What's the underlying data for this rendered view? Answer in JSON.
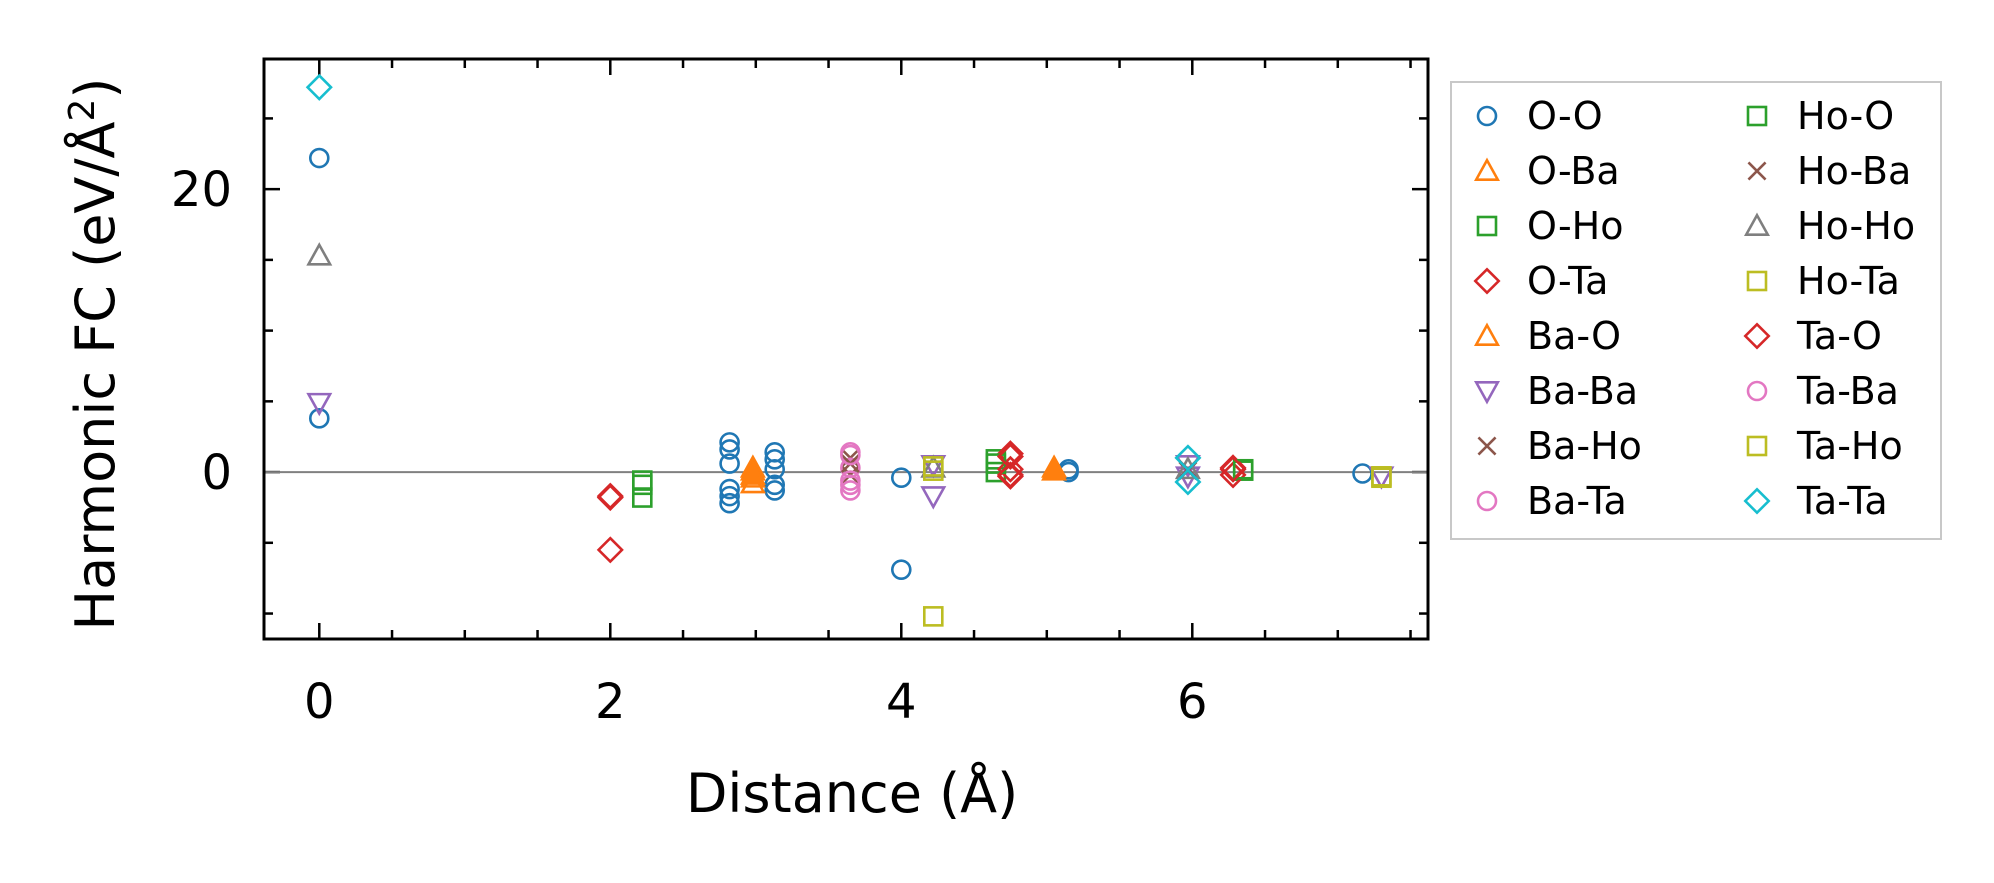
{
  "chart_data": {
    "type": "scatter",
    "title": "",
    "xlabel": "Distance (Å)",
    "ylabel_main": "Harmonic FC (eV/Å",
    "ylabel_sup": "2",
    "ylabel_close": ")",
    "xlim": [
      -0.38,
      7.62
    ],
    "ylim": [
      -11.8,
      29.2
    ],
    "xticks": [
      0,
      2,
      4,
      6
    ],
    "xtick_labels": [
      "0",
      "2",
      "4",
      "6"
    ],
    "yticks": [
      0,
      20
    ],
    "ytick_labels": [
      "0",
      "20"
    ],
    "x_minor_step": 0.5,
    "y_minor_step": 5,
    "zero_line": true,
    "grid": false,
    "legend_position": "outside-right",
    "series": [
      {
        "name": "O-O",
        "marker": "circle",
        "color": "#1f77b4",
        "filled": false,
        "points": [
          [
            0,
            22.2
          ],
          [
            0,
            3.8
          ],
          [
            2.82,
            2.1
          ],
          [
            2.82,
            1.6
          ],
          [
            2.82,
            0.6
          ],
          [
            2.82,
            -1.2
          ],
          [
            2.82,
            -1.7
          ],
          [
            2.82,
            -2.2
          ],
          [
            3.13,
            1.4
          ],
          [
            3.13,
            0.9
          ],
          [
            3.13,
            0.2
          ],
          [
            3.13,
            -0.9
          ],
          [
            3.13,
            -1.3
          ],
          [
            4.0,
            -0.4
          ],
          [
            4.0,
            -6.9
          ],
          [
            5.15,
            0.2
          ],
          [
            5.15,
            0
          ],
          [
            7.17,
            -0.1
          ]
        ]
      },
      {
        "name": "O-Ba",
        "marker": "triangle-up",
        "color": "#ff7f0e",
        "filled": false,
        "points": [
          [
            2.98,
            0.1
          ],
          [
            2.98,
            -0.4
          ],
          [
            2.98,
            -0.8
          ],
          [
            5.05,
            0.3
          ]
        ]
      },
      {
        "name": "O-Ho",
        "marker": "square",
        "color": "#2ca02c",
        "filled": false,
        "points": [
          [
            2.22,
            -0.9
          ],
          [
            2.22,
            -1.8
          ],
          [
            4.65,
            0.9
          ],
          [
            4.65,
            0
          ],
          [
            6.35,
            0.1
          ]
        ]
      },
      {
        "name": "O-Ta",
        "marker": "diamond",
        "color": "#d62728",
        "filled": false,
        "points": [
          [
            2.0,
            -1.8
          ],
          [
            2.0,
            -5.5
          ],
          [
            4.75,
            1.3
          ],
          [
            4.75,
            0.2
          ],
          [
            4.75,
            -0.3
          ],
          [
            6.28,
            0.3
          ],
          [
            6.28,
            -0.2
          ]
        ]
      },
      {
        "name": "Ba-O",
        "marker": "triangle-up",
        "color": "#ff7f0e",
        "filled": true,
        "points": [
          [
            2.98,
            0.3
          ],
          [
            2.98,
            -0.2
          ],
          [
            5.05,
            0.1
          ]
        ]
      },
      {
        "name": "Ba-Ba",
        "marker": "triangle-down",
        "color": "#9467bd",
        "filled": false,
        "points": [
          [
            0,
            4.9
          ],
          [
            4.22,
            0.5
          ],
          [
            4.22,
            -1.7
          ],
          [
            5.97,
            0.5
          ],
          [
            5.97,
            -0.3
          ],
          [
            7.3,
            -0.3
          ]
        ]
      },
      {
        "name": "Ba-Ho",
        "marker": "x",
        "color": "#8c564b",
        "filled": false,
        "points": [
          [
            3.65,
            1.0
          ],
          [
            3.65,
            -0.2
          ],
          [
            5.97,
            0.1
          ]
        ]
      },
      {
        "name": "Ba-Ta",
        "marker": "circle",
        "color": "#e377c2",
        "filled": false,
        "points": [
          [
            3.65,
            1.4
          ],
          [
            3.65,
            0.3
          ],
          [
            3.65,
            -0.6
          ],
          [
            3.65,
            -1.3
          ]
        ]
      },
      {
        "name": "Ho-O",
        "marker": "square",
        "color": "#2ca02c",
        "filled": false,
        "points": [
          [
            2.22,
            -0.6
          ],
          [
            4.65,
            0.6
          ],
          [
            6.35,
            0.2
          ]
        ]
      },
      {
        "name": "Ho-Ba",
        "marker": "x",
        "color": "#8c564b",
        "filled": false,
        "points": [
          [
            3.65,
            0.6
          ],
          [
            5.97,
            0.2
          ]
        ]
      },
      {
        "name": "Ho-Ho",
        "marker": "triangle-up",
        "color": "#7f7f7f",
        "filled": false,
        "points": [
          [
            0,
            15.3
          ],
          [
            4.22,
            0.3
          ],
          [
            5.97,
            0.2
          ]
        ]
      },
      {
        "name": "Ho-Ta",
        "marker": "square",
        "color": "#bcbd22",
        "filled": false,
        "points": [
          [
            4.22,
            0.4
          ],
          [
            4.22,
            -10.2
          ],
          [
            7.3,
            -0.4
          ]
        ]
      },
      {
        "name": "Ta-O",
        "marker": "diamond",
        "color": "#d62728",
        "filled": false,
        "points": [
          [
            2.0,
            -1.7
          ],
          [
            4.75,
            1.1
          ],
          [
            4.75,
            -0.2
          ],
          [
            6.28,
            0.2
          ]
        ]
      },
      {
        "name": "Ta-Ba",
        "marker": "circle",
        "color": "#e377c2",
        "filled": false,
        "points": [
          [
            3.65,
            1.2
          ],
          [
            3.65,
            -0.9
          ]
        ]
      },
      {
        "name": "Ta-Ho",
        "marker": "square",
        "color": "#bcbd22",
        "filled": false,
        "points": [
          [
            4.22,
            0.1
          ],
          [
            7.3,
            -0.3
          ]
        ]
      },
      {
        "name": "Ta-Ta",
        "marker": "diamond",
        "color": "#17becf",
        "filled": false,
        "points": [
          [
            0,
            27.2
          ],
          [
            5.97,
            1.0
          ],
          [
            5.97,
            -0.7
          ]
        ]
      }
    ]
  }
}
